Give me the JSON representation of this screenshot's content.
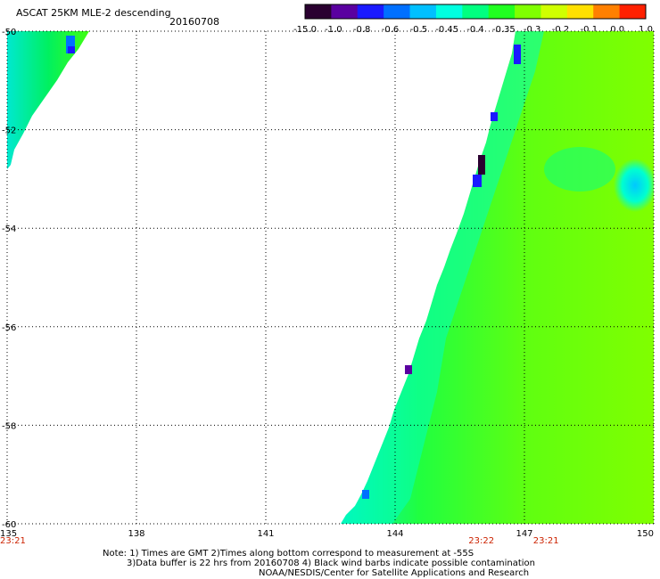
{
  "header": {
    "product": "ASCAT 25KM MLE-2 descending",
    "date": "20160708"
  },
  "colorbar": {
    "labels": [
      "-15.0",
      "-1.0",
      "-0.8",
      "-0.6",
      "-0.5",
      "-0.45",
      "-0.4",
      "-0.35",
      "-0.3",
      "-0.2",
      "-0.1",
      "0.0",
      "1.0"
    ],
    "colors": [
      "#2a0030",
      "#5a00a0",
      "#1a1aff",
      "#0070ff",
      "#00c0ff",
      "#00ffe0",
      "#00ff80",
      "#20ff20",
      "#80ff00",
      "#d0ff00",
      "#ffe000",
      "#ff8000",
      "#ff2000"
    ]
  },
  "map": {
    "lat_labels": [
      "-50",
      "-52",
      "-54",
      "-56",
      "-58",
      "-60"
    ],
    "lon_labels": [
      "135",
      "138",
      "141",
      "144",
      "147",
      "150"
    ],
    "lat_range": [
      -60,
      -50
    ],
    "lon_range": [
      135,
      150
    ],
    "time_labels": [
      {
        "text": "23:21",
        "lon": 135
      },
      {
        "text": "23:22",
        "lon": 146
      },
      {
        "text": "23:21",
        "lon": 147.5
      }
    ]
  },
  "notes": {
    "line1": "Note: 1) Times are GMT 2)Times along bottom correspond to measurement at -55S",
    "line2": "3)Data buffer is 22 hrs from 20160708 4) Black wind barbs indicate possible contamination",
    "line3": "NOAA/NESDIS/Center for Satellite Applications and Research"
  }
}
